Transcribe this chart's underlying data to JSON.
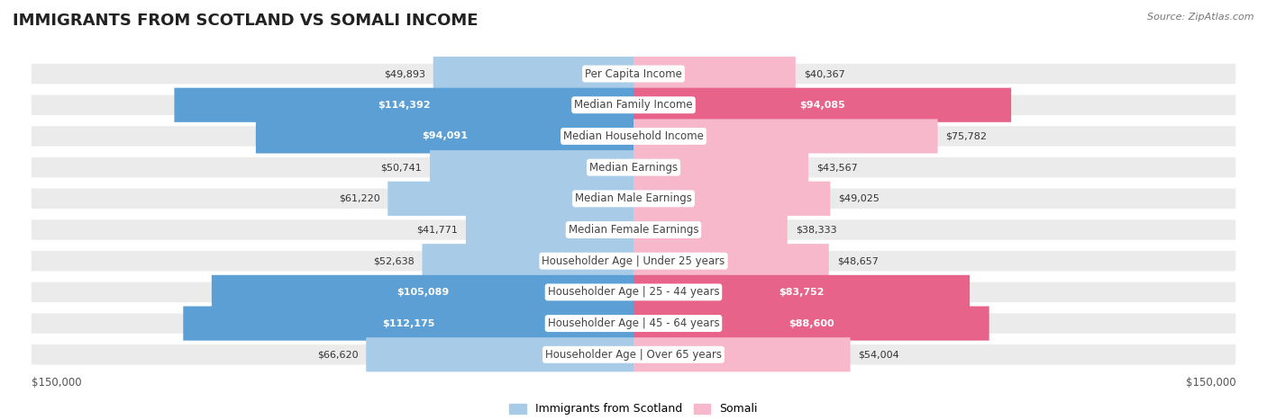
{
  "title": "IMMIGRANTS FROM SCOTLAND VS SOMALI INCOME",
  "source": "Source: ZipAtlas.com",
  "categories": [
    "Per Capita Income",
    "Median Family Income",
    "Median Household Income",
    "Median Earnings",
    "Median Male Earnings",
    "Median Female Earnings",
    "Householder Age | Under 25 years",
    "Householder Age | 25 - 44 years",
    "Householder Age | 45 - 64 years",
    "Householder Age | Over 65 years"
  ],
  "scotland_values": [
    49893,
    114392,
    94091,
    50741,
    61220,
    41771,
    52638,
    105089,
    112175,
    66620
  ],
  "somali_values": [
    40367,
    94085,
    75782,
    43567,
    49025,
    38333,
    48657,
    83752,
    88600,
    54004
  ],
  "scotland_color_light": "#a8cce8",
  "scotland_color_dark": "#5b9fd4",
  "somali_color_light": "#f7b8cc",
  "somali_color_dark": "#e8638a",
  "scotland_label": "Immigrants from Scotland",
  "somali_label": "Somali",
  "max_value": 150000,
  "background_color": "#ffffff",
  "row_bg_color": "#ebebeb",
  "title_fontsize": 13,
  "label_fontsize": 8.5,
  "value_fontsize": 8,
  "axis_label_fontsize": 8.5
}
